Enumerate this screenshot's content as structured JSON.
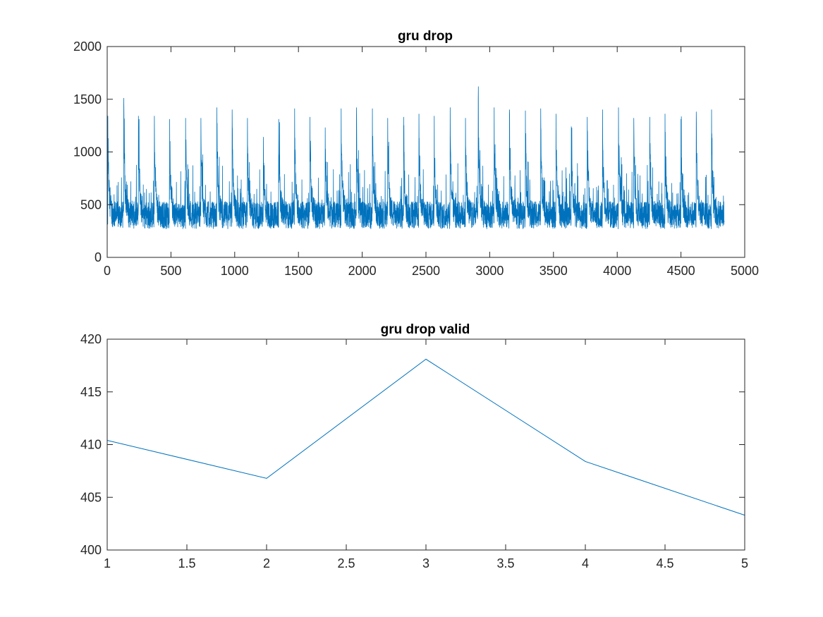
{
  "colors": {
    "series": "#0072BD",
    "axes": "#262626",
    "background": "#ffffff"
  },
  "chart_data": [
    {
      "type": "line",
      "title": "gru drop",
      "xlabel": "",
      "ylabel": "",
      "xlim": [
        0,
        5000
      ],
      "ylim": [
        0,
        2000
      ],
      "xticks": [
        0,
        500,
        1000,
        1500,
        2000,
        2500,
        3000,
        3500,
        4000,
        4500,
        5000
      ],
      "yticks": [
        0,
        500,
        1000,
        1500,
        2000
      ],
      "xtick_labels": [
        "0",
        "500",
        "1000",
        "1500",
        "2000",
        "2500",
        "3000",
        "3500",
        "4000",
        "4500",
        "5000"
      ],
      "ytick_labels": [
        "0",
        "500",
        "1000",
        "1500",
        "2000"
      ],
      "grid": false,
      "series_summary": {
        "x_start": 1,
        "x_end": 4840,
        "baseline_low": 130,
        "baseline_high": 700,
        "typical": 400,
        "peaks": [
          {
            "x": 5,
            "y": 1340
          },
          {
            "x": 130,
            "y": 1510
          },
          {
            "x": 245,
            "y": 1340
          },
          {
            "x": 370,
            "y": 1340
          },
          {
            "x": 490,
            "y": 1310
          },
          {
            "x": 615,
            "y": 1320
          },
          {
            "x": 735,
            "y": 1320
          },
          {
            "x": 860,
            "y": 1420
          },
          {
            "x": 980,
            "y": 1400
          },
          {
            "x": 1100,
            "y": 1320
          },
          {
            "x": 1225,
            "y": 1140
          },
          {
            "x": 1345,
            "y": 1310
          },
          {
            "x": 1470,
            "y": 1410
          },
          {
            "x": 1590,
            "y": 1330
          },
          {
            "x": 1710,
            "y": 1230
          },
          {
            "x": 1835,
            "y": 1410
          },
          {
            "x": 1955,
            "y": 1420
          },
          {
            "x": 2080,
            "y": 1410
          },
          {
            "x": 2200,
            "y": 1320
          },
          {
            "x": 2325,
            "y": 1330
          },
          {
            "x": 2445,
            "y": 1360
          },
          {
            "x": 2565,
            "y": 1340
          },
          {
            "x": 2690,
            "y": 1420
          },
          {
            "x": 2810,
            "y": 1320
          },
          {
            "x": 2910,
            "y": 1500
          },
          {
            "x": 3035,
            "y": 1420
          },
          {
            "x": 3155,
            "y": 1400
          },
          {
            "x": 3280,
            "y": 1390
          },
          {
            "x": 3400,
            "y": 1410
          },
          {
            "x": 3520,
            "y": 1360
          },
          {
            "x": 3640,
            "y": 1240
          },
          {
            "x": 3765,
            "y": 1330
          },
          {
            "x": 3885,
            "y": 1400
          },
          {
            "x": 4010,
            "y": 1420
          },
          {
            "x": 4130,
            "y": 1320
          },
          {
            "x": 4255,
            "y": 1330
          },
          {
            "x": 4375,
            "y": 1360
          },
          {
            "x": 4500,
            "y": 1310
          },
          {
            "x": 4620,
            "y": 1380
          },
          {
            "x": 4740,
            "y": 1400
          }
        ]
      }
    },
    {
      "type": "line",
      "title": "gru drop valid",
      "xlabel": "",
      "ylabel": "",
      "xlim": [
        1,
        5
      ],
      "ylim": [
        400,
        420
      ],
      "xticks": [
        1,
        1.5,
        2,
        2.5,
        3,
        3.5,
        4,
        4.5,
        5
      ],
      "yticks": [
        400,
        405,
        410,
        415,
        420
      ],
      "xtick_labels": [
        "1",
        "1.5",
        "2",
        "2.5",
        "3",
        "3.5",
        "4",
        "4.5",
        "5"
      ],
      "ytick_labels": [
        "400",
        "405",
        "410",
        "415",
        "420"
      ],
      "grid": false,
      "x": [
        1,
        2,
        3,
        4,
        5
      ],
      "y": [
        410.4,
        406.8,
        418.1,
        408.4,
        403.3
      ]
    }
  ]
}
